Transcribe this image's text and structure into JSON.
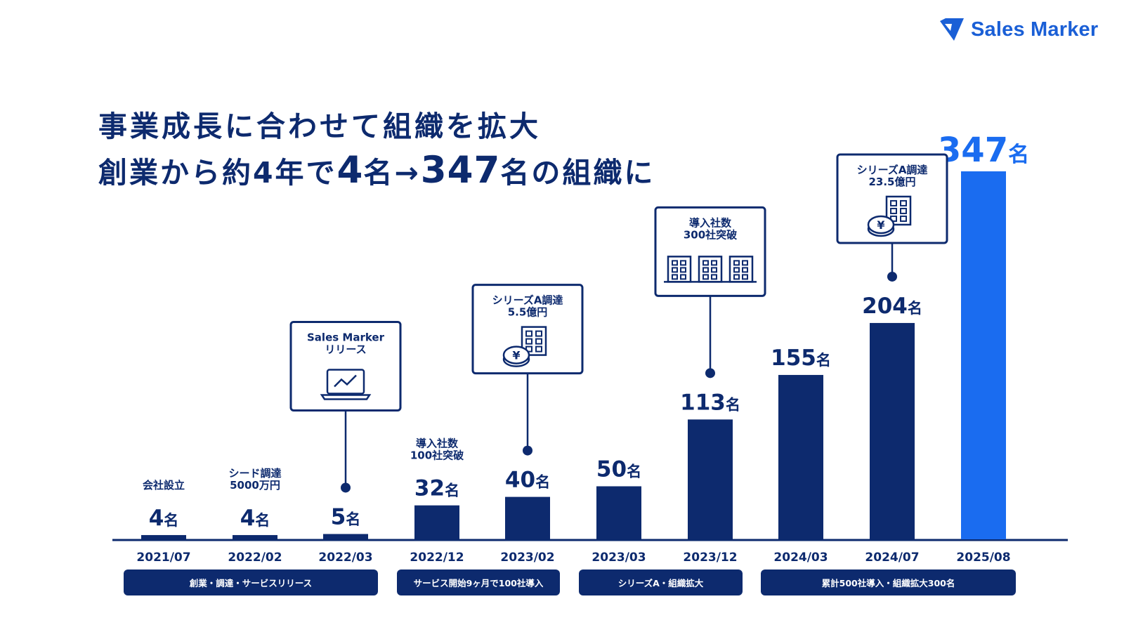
{
  "brand": {
    "name": "Sales Marker",
    "colors": {
      "navy": "#0d2a6e",
      "accent_blue": "#1a6cf0",
      "logo_blue": "#1a5fd6"
    }
  },
  "title": {
    "line1": "事業成長に合わせて組織を拡大",
    "line2_prefix": "創業から約4年で",
    "line2_from": "4",
    "line2_from_unit": "名",
    "line2_arrow": "→",
    "line2_to": "347",
    "line2_to_unit": "名",
    "line2_suffix": "の組織に"
  },
  "chart_data": {
    "type": "bar",
    "title": "事業成長に合わせて組織を拡大",
    "categories": [
      "2021/07",
      "2022/02",
      "2022/03",
      "2022/12",
      "2023/02",
      "2023/03",
      "2023/12",
      "2024/03",
      "2024/07",
      "2025/08"
    ],
    "values": [
      4,
      4,
      5,
      32,
      40,
      50,
      113,
      155,
      204,
      347
    ],
    "unit": "名",
    "ylim": [
      0,
      347
    ],
    "grid": false,
    "highlight_index": 9,
    "plain_notes": [
      {
        "index": 0,
        "lines": [
          "会社設立"
        ]
      },
      {
        "index": 1,
        "lines": [
          "シード調達",
          "5000万円"
        ]
      },
      {
        "index": 3,
        "lines": [
          "導入社数",
          "100社突破"
        ]
      }
    ],
    "callouts": [
      {
        "index": 2,
        "lines": [
          "Sales Marker",
          "リリース"
        ],
        "icon": "laptop-chart-icon"
      },
      {
        "index": 4,
        "lines": [
          "シリーズA調達",
          "5.5億円"
        ],
        "icon": "building-yen-icon"
      },
      {
        "index": 6,
        "lines": [
          "導入社数",
          "300社突破"
        ],
        "icon": "three-buildings-icon"
      },
      {
        "index": 8,
        "lines": [
          "シリーズA調達",
          "23.5億円"
        ],
        "icon": "building-yen-icon"
      }
    ],
    "phases": [
      {
        "label": "創業・調達・サービスリリース",
        "from": 0,
        "to": 2
      },
      {
        "label": "サービス開始9ヶ月で100社導入",
        "from": 3,
        "to": 4
      },
      {
        "label": "シリーズA・組織拡大",
        "from": 5,
        "to": 6
      },
      {
        "label": "累計500社導入・組織拡大300名",
        "from": 7,
        "to": 9
      }
    ]
  }
}
